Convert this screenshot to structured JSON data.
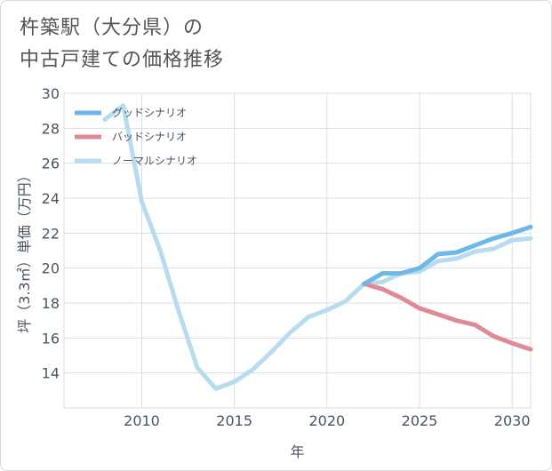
{
  "title": {
    "line1": "杵築駅（大分県）の",
    "line2": "中古戸建ての価格推移"
  },
  "chart_data": {
    "type": "line",
    "title": "杵築駅（大分県）の中古戸建ての価格推移",
    "xlabel": "年",
    "ylabel": "坪（3.3㎡）単価（万円）",
    "xlim": [
      2005.8,
      2031
    ],
    "ylim": [
      12,
      30
    ],
    "xticks": [
      2010,
      2015,
      2020,
      2025,
      2030
    ],
    "yticks": [
      14,
      16,
      18,
      20,
      22,
      24,
      26,
      28,
      30
    ],
    "grid": true,
    "legend_position": "top-left",
    "series": [
      {
        "name": "グッドシナリオ",
        "color": "#6cb8e8",
        "x": [
          2022,
          2023,
          2024,
          2025,
          2026,
          2027,
          2028,
          2029,
          2030,
          2031
        ],
        "y": [
          19.1,
          19.7,
          19.7,
          20.0,
          20.8,
          20.9,
          21.3,
          21.7,
          22.0,
          22.35
        ]
      },
      {
        "name": "バッドシナリオ",
        "color": "#e08a95",
        "x": [
          2022,
          2023,
          2024,
          2025,
          2026,
          2027,
          2028,
          2029,
          2030,
          2031
        ],
        "y": [
          19.1,
          18.8,
          18.3,
          17.7,
          17.35,
          17.0,
          16.75,
          16.1,
          15.7,
          15.35
        ]
      },
      {
        "name": "ノーマルシナリオ",
        "color": "#b8dcef",
        "x": [
          2008,
          2009,
          2010,
          2011,
          2012,
          2013,
          2014,
          2015,
          2016,
          2017,
          2018,
          2019,
          2020,
          2021,
          2022,
          2023,
          2024,
          2025,
          2026,
          2027,
          2028,
          2029,
          2030,
          2031
        ],
        "y": [
          28.5,
          29.3,
          23.8,
          21.0,
          17.5,
          14.3,
          13.1,
          13.5,
          14.2,
          15.2,
          16.3,
          17.2,
          17.6,
          18.1,
          19.1,
          19.2,
          19.7,
          19.8,
          20.4,
          20.55,
          20.95,
          21.1,
          21.6,
          21.7
        ]
      }
    ]
  }
}
